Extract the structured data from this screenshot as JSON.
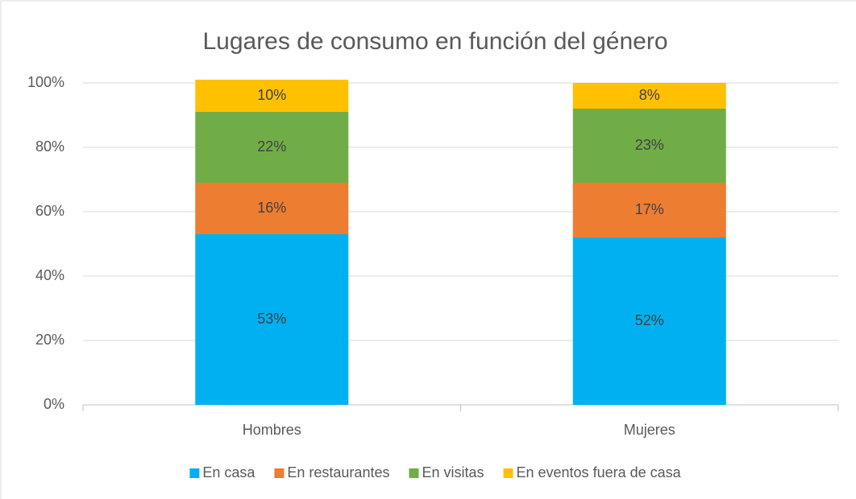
{
  "chart_data": {
    "type": "stacked_bar",
    "title": "Lugares de consumo en función del género",
    "categories": [
      "Hombres",
      "Mujeres"
    ],
    "series": [
      {
        "name": "En casa",
        "color": "#00b0f0",
        "values": [
          53,
          52
        ],
        "value_labels": [
          "53%",
          "52%"
        ]
      },
      {
        "name": "En restaurantes",
        "color": "#ed7d31",
        "values": [
          16,
          17
        ],
        "value_labels": [
          "16%",
          "17%"
        ]
      },
      {
        "name": "En visitas",
        "color": "#70ad47",
        "values": [
          22,
          23
        ],
        "value_labels": [
          "22%",
          "23%"
        ]
      },
      {
        "name": "En eventos fuera de casa",
        "color": "#ffc000",
        "values": [
          10,
          8
        ],
        "value_labels": [
          "10%",
          "8%"
        ]
      }
    ],
    "ylim": [
      0,
      100
    ],
    "yticks": [
      {
        "value": 0,
        "label": "0%"
      },
      {
        "value": 20,
        "label": "20%"
      },
      {
        "value": 40,
        "label": "40%"
      },
      {
        "value": 60,
        "label": "60%"
      },
      {
        "value": 80,
        "label": "80%"
      },
      {
        "value": 100,
        "label": "100%"
      }
    ],
    "grid": true,
    "legend": "bottom"
  }
}
